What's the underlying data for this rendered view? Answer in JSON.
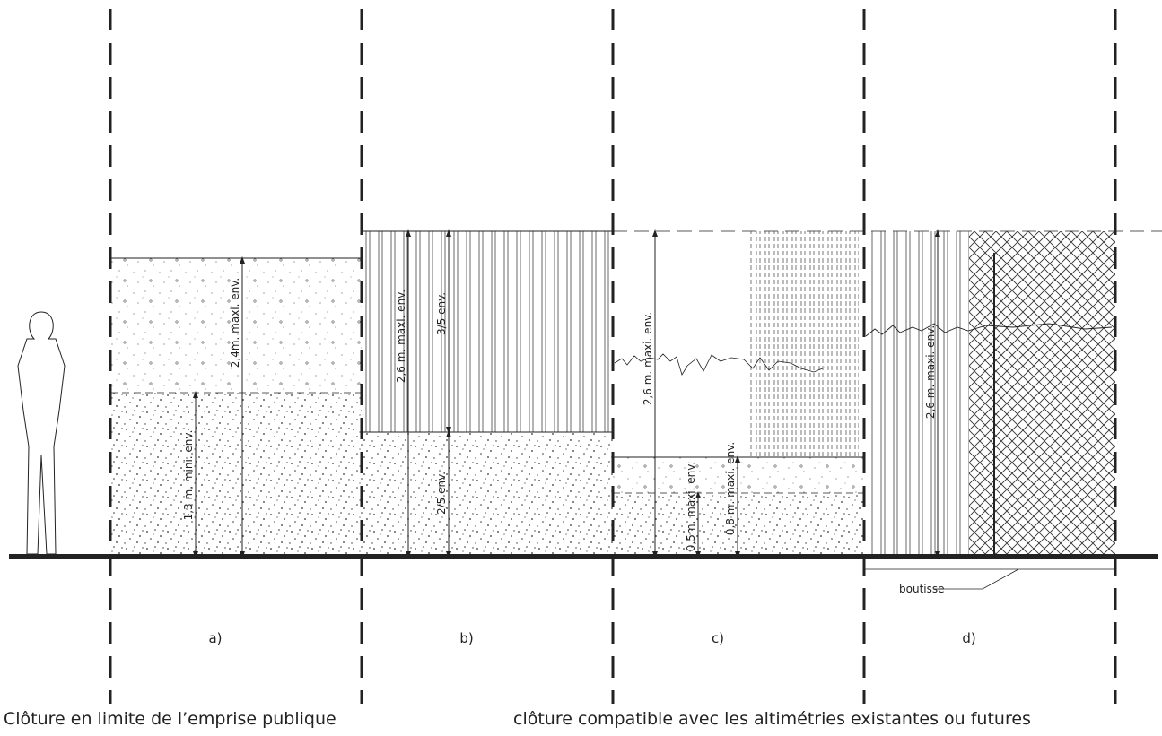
{
  "panels": [
    {
      "label": "a)",
      "dimensions": [
        "2,4m. maxi. env.",
        "1,3 m. mini. env."
      ]
    },
    {
      "label": "b)",
      "dimensions": [
        "2,6 m. maxi. env.",
        "3/5 env.",
        "2/5 env."
      ]
    },
    {
      "label": "c)",
      "dimensions": [
        "2,6 m. maxi. env.",
        "0,5m. maxi. env.",
        "0,8 m. maxi. env."
      ]
    },
    {
      "label": "d)",
      "dimensions": [
        "2,6 m. maxi. env."
      ],
      "annotation": "boutisse"
    }
  ],
  "captions": [
    "Clôture en limite de l’emprise publique",
    "clôture compatible avec les altimétries existantes ou futures"
  ]
}
